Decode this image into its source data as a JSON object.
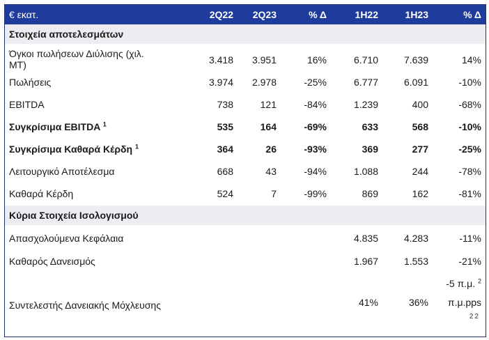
{
  "header": {
    "label": "€ εκατ.",
    "columns": [
      "2Q22",
      "2Q23",
      "% Δ",
      "1H22",
      "1H23",
      "% Δ"
    ]
  },
  "sections": [
    {
      "title": "Στοιχεία αποτελεσμάτων"
    },
    {
      "title": "Κύρια Στοιχεία Ισολογισμού"
    }
  ],
  "rows": [
    {
      "label_line1": "Όγκοι  πωλήσεων  Διύλισης  (χιλ.",
      "label_line2": "ΜΤ)",
      "values": [
        "3.418",
        "3.951",
        "16%",
        "6.710",
        "7.639",
        "14%"
      ]
    },
    {
      "label": "Πωλήσεις",
      "values": [
        "3.974",
        "2.978",
        "-25%",
        "6.777",
        "6.091",
        "-10%"
      ]
    },
    {
      "label": "EBITDA",
      "values": [
        "738",
        "121",
        "-84%",
        "1.239",
        "400",
        "-68%"
      ]
    },
    {
      "label": "Συγκρίσιμα EBITDA",
      "note": "1",
      "values": [
        "535",
        "164",
        "-69%",
        "633",
        "568",
        "-10%"
      ]
    },
    {
      "label": "Συγκρίσιμα Καθαρά Κέρδη",
      "note": "1",
      "values": [
        "364",
        "26",
        "-93%",
        "369",
        "277",
        "-25%"
      ]
    },
    {
      "label": "Λειτουργικό Αποτέλεσμα",
      "values": [
        "668",
        "43",
        "-94%",
        "1.088",
        "244",
        "-78%"
      ]
    },
    {
      "label": "Καθαρά Κέρδη",
      "values": [
        "524",
        "7",
        "-99%",
        "869",
        "162",
        "-81%"
      ]
    },
    {
      "label": "Απασχολούμενα Κεφάλαια",
      "values": [
        "4.835",
        "4.283",
        "-11%"
      ]
    },
    {
      "label": "Καθαρός Δανεισμός",
      "values": [
        "1.967",
        "1.553",
        "-21%"
      ]
    },
    {
      "label": "Συντελεστής Δανειακής Μόχλευσης",
      "values": [
        "41%",
        "36%"
      ],
      "change_line1": "-5 π.μ.",
      "change_note": "2",
      "change_line2": "π.μ.pps"
    }
  ],
  "page_number": "22"
}
